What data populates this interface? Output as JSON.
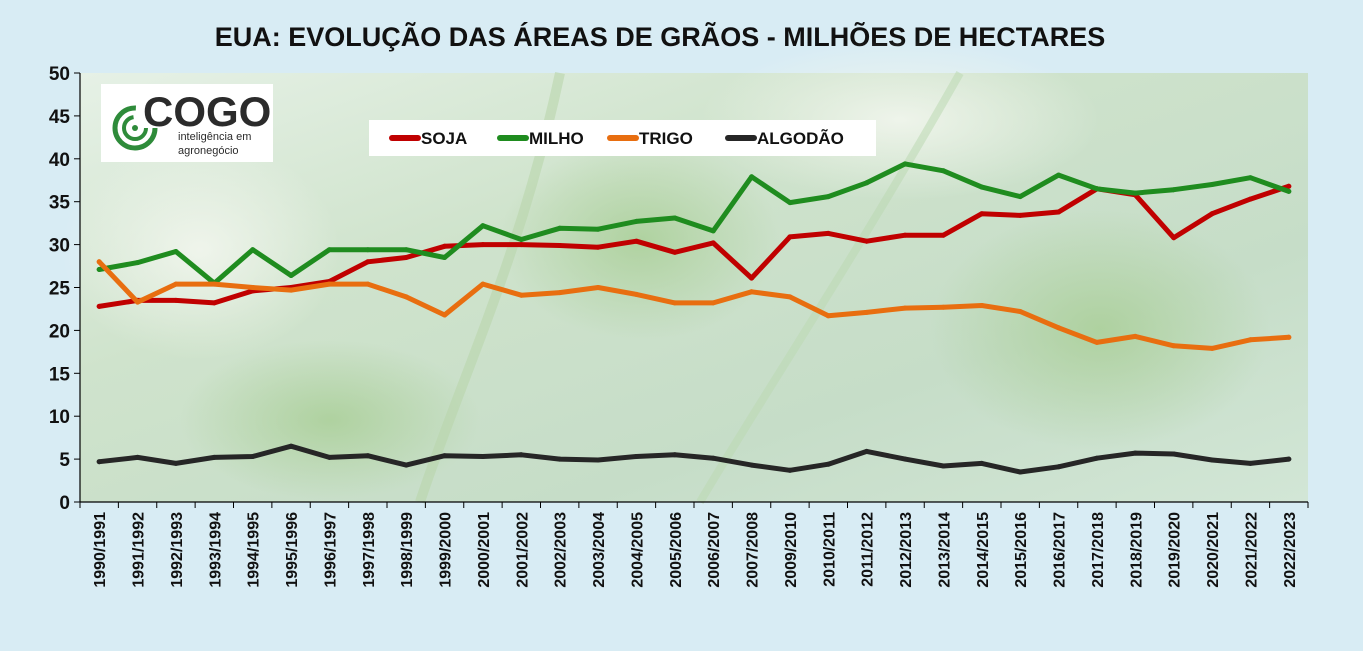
{
  "logo": {
    "brand": "COGO",
    "tagline_line1": "inteligência em",
    "tagline_line2": "agronegócio"
  },
  "chart_data": {
    "type": "line",
    "title": "EUA: EVOLUÇÃO DAS ÁREAS DE GRÃOS - MILHÕES DE HECTARES",
    "xlabel": "",
    "ylabel": "",
    "ylim": [
      0,
      50
    ],
    "yticks": [
      0,
      5,
      10,
      15,
      20,
      25,
      30,
      35,
      40,
      45,
      50
    ],
    "grid": false,
    "legend_position": "top-center",
    "categories": [
      "1990/1991",
      "1991/1992",
      "1992/1993",
      "1993/1994",
      "1994/1995",
      "1995/1996",
      "1996/1997",
      "1997/1998",
      "1998/1999",
      "1999/2000",
      "2000/2001",
      "2001/2002",
      "2002/2003",
      "2003/2004",
      "2004/2005",
      "2005/2006",
      "2006/2007",
      "2007/2008",
      "2009/2010",
      "2010/2011",
      "2011/2012",
      "2012/2013",
      "2013/2014",
      "2014/2015",
      "2015/2016",
      "2016/2017",
      "2017/2018",
      "2018/2019",
      "2019/2020",
      "2020/2021",
      "2021/2022",
      "2022/2023"
    ],
    "series": [
      {
        "name": "SOJA",
        "color": "#c00000",
        "values": [
          22.8,
          23.5,
          23.5,
          23.2,
          24.6,
          25.0,
          25.7,
          28.0,
          28.5,
          29.8,
          30.0,
          30.0,
          29.9,
          29.7,
          30.4,
          29.1,
          30.2,
          26.1,
          30.9,
          31.3,
          30.4,
          31.1,
          31.1,
          33.6,
          33.4,
          33.8,
          36.5,
          35.8,
          30.8,
          33.6,
          35.3,
          36.8
        ]
      },
      {
        "name": "MILHO",
        "color": "#1f8c1f",
        "values": [
          27.1,
          27.9,
          29.2,
          25.5,
          29.4,
          26.4,
          29.4,
          29.4,
          29.4,
          28.5,
          32.2,
          30.6,
          31.9,
          31.8,
          32.7,
          33.1,
          31.6,
          37.9,
          34.9,
          35.6,
          37.2,
          39.4,
          38.6,
          36.7,
          35.6,
          38.1,
          36.5,
          36.0,
          36.4,
          37.0,
          37.8,
          36.2
        ]
      },
      {
        "name": "TRIGO",
        "color": "#e86e10",
        "values": [
          28.0,
          23.3,
          25.4,
          25.4,
          25.0,
          24.7,
          25.4,
          25.4,
          23.9,
          21.8,
          25.4,
          24.1,
          24.4,
          25.0,
          24.2,
          23.2,
          23.2,
          24.5,
          23.9,
          21.7,
          22.1,
          22.6,
          22.7,
          22.9,
          22.2,
          20.3,
          18.6,
          19.3,
          18.2,
          17.9,
          18.9,
          19.2
        ]
      },
      {
        "name": "ALGODÃO",
        "color": "#262626",
        "values": [
          4.7,
          5.2,
          4.5,
          5.2,
          5.3,
          6.5,
          5.2,
          5.4,
          4.3,
          5.4,
          5.3,
          5.5,
          5.0,
          4.9,
          5.3,
          5.5,
          5.1,
          4.3,
          3.7,
          4.4,
          5.9,
          5.0,
          4.2,
          4.5,
          3.5,
          4.1,
          5.1,
          5.7,
          5.6,
          4.9,
          4.5,
          5.0
        ]
      }
    ]
  }
}
